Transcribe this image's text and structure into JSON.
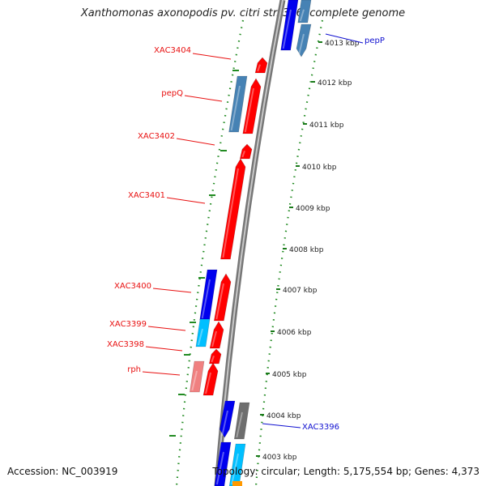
{
  "title": "Xanthomonas axonopodis pv. citri str. 306, complete genome",
  "accession": "Accession: NC_003919",
  "topology": "Topology: circular; Length: 5,175,554 bp; Genes: 4,373",
  "scale_labels": [
    "4013 kbp",
    "4012 kbp",
    "4011 kbp",
    "4010 kbp",
    "4009 kbp",
    "4008 kbp",
    "4007 kbp",
    "4006 kbp",
    "4005 kbp",
    "4004 kbp",
    "4003 kbp"
  ],
  "gene_labels": [
    {
      "name": "XAC3404",
      "color": "#e81010"
    },
    {
      "name": "pepQ",
      "color": "#e81010"
    },
    {
      "name": "XAC3402",
      "color": "#e81010"
    },
    {
      "name": "XAC3401",
      "color": "#e81010"
    },
    {
      "name": "XAC3400",
      "color": "#e81010"
    },
    {
      "name": "XAC3399",
      "color": "#e81010"
    },
    {
      "name": "XAC3398",
      "color": "#e81010"
    },
    {
      "name": "rph",
      "color": "#e81010"
    },
    {
      "name": "pepP",
      "color": "#1010d0"
    },
    {
      "name": "XAC3396",
      "color": "#1010d0"
    }
  ],
  "colors": {
    "red": "#ff0000",
    "blue": "#0000ee",
    "steelblue": "#4682b4",
    "cyan": "#00bfff",
    "pink": "#f08080",
    "gray": "#6e6e6e",
    "orange": "#ff9900",
    "backbone": "#8c8c8c",
    "gc_green": "#228b22"
  }
}
